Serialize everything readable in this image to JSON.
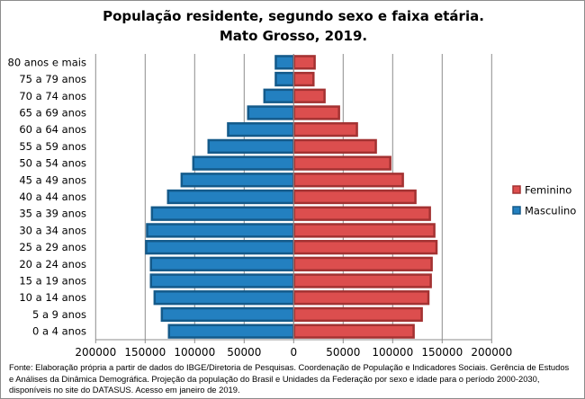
{
  "chart_data": {
    "type": "bar",
    "orientation": "horizontal",
    "subtype": "population-pyramid",
    "title": [
      "População residente, segundo sexo e faixa etária.",
      "Mato Grosso, 2019."
    ],
    "categories": [
      "80 anos e mais",
      "75 a 79 anos",
      "70 a 74 anos",
      "65 a 69 anos",
      "60 a 64 anos",
      "55 a 59 anos",
      "50 a 54 anos",
      "45 a 49 anos",
      "40 a 44 anos",
      "35 a 39 anos",
      "30 a 34 anos",
      "25 a 29 anos",
      "20 a 24 anos",
      "15 a 19 anos",
      "10 a 14 anos",
      "5 a 9 anos",
      "0 a 4 anos"
    ],
    "series": [
      {
        "name": "Feminino",
        "color": "#dc4e4e",
        "values": [
          22100,
          20900,
          32100,
          46700,
          64800,
          83900,
          98500,
          111200,
          123900,
          138500,
          143000,
          145200,
          140300,
          139400,
          137000,
          130300,
          122100
        ]
      },
      {
        "name": "Masculino",
        "color": "#2380c0",
        "values": [
          19400,
          19400,
          30900,
          47300,
          67600,
          87300,
          102700,
          114500,
          128200,
          144500,
          149400,
          150300,
          145500,
          145500,
          141800,
          134500,
          127300
        ]
      }
    ],
    "xlim": [
      -200000,
      200000
    ],
    "xticks": [
      "200000",
      "150000",
      "100000",
      "50000",
      "0",
      "50000",
      "100000",
      "150000",
      "200000"
    ],
    "xlabel": "",
    "ylabel": "",
    "grid": "vertical",
    "legend": "right"
  },
  "source": "Fonte:  Elaboração própria a partir de dados do  IBGE/Diretoria de Pesquisas. Coordenação de População e Indicadores Sociais. Gerência de Estudos e Análises da Dinâmica Demográfica. Projeção da população do Brasil e Unidades da Federação por sexo e idade para o período 2000-2030, disponíveis no site do DATASUS. Acesso em  janeiro de 2019."
}
